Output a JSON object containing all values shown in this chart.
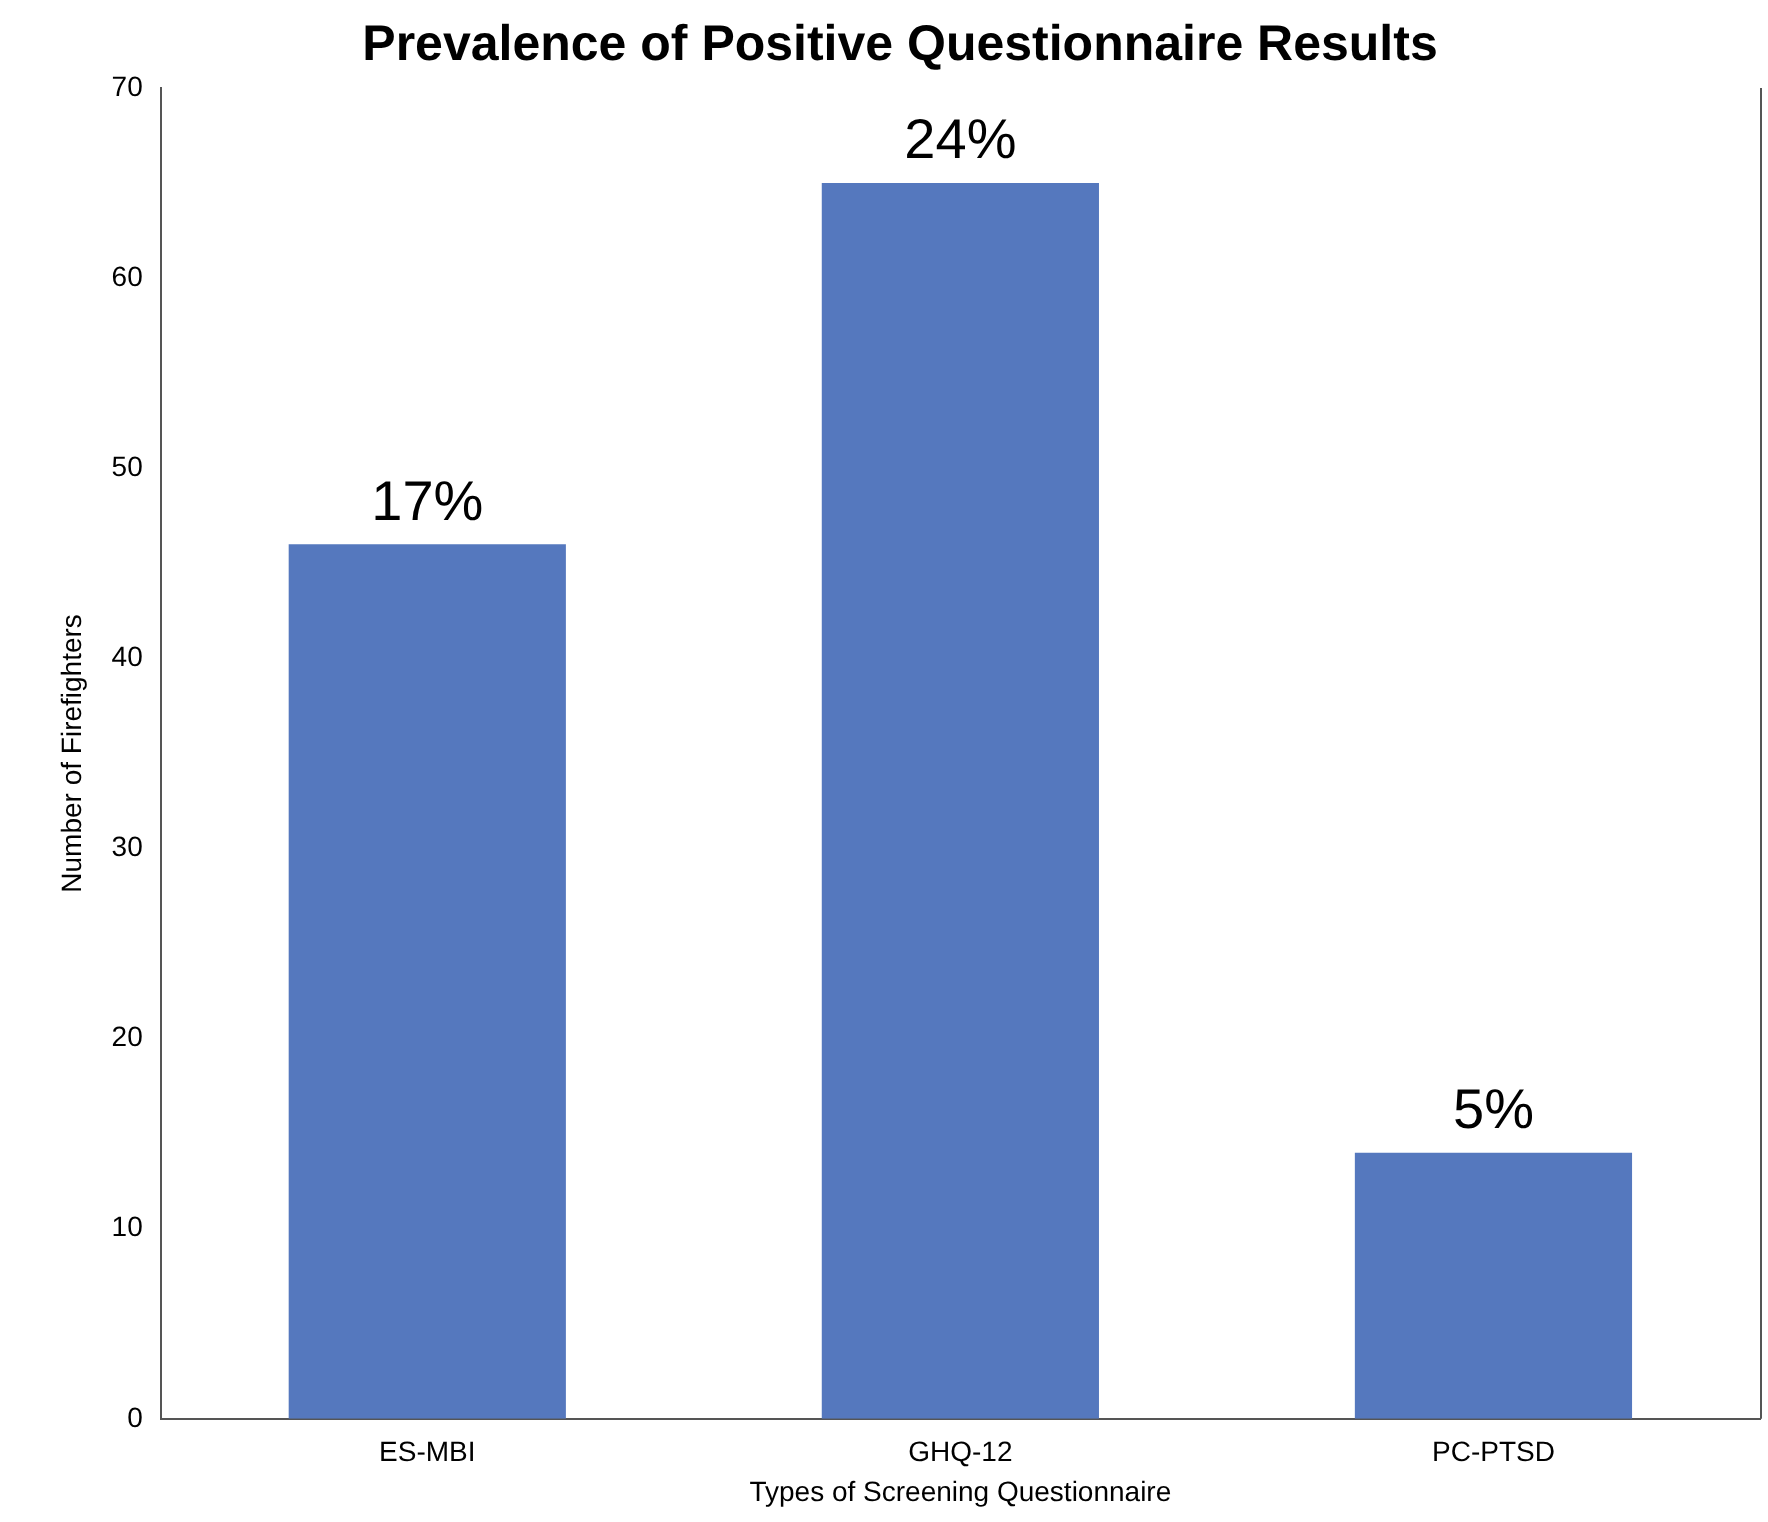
{
  "chart_data": {
    "type": "bar",
    "title": "Prevalence of Positive Questionnaire Results",
    "xlabel": "Types of Screening Questionnaire",
    "ylabel": "Number of Firefighters",
    "categories": [
      "ES-MBI",
      "GHQ-12",
      "PC-PTSD"
    ],
    "values": [
      46,
      65,
      14
    ],
    "color": "#5578be",
    "annotations": [
      {
        "text": "17%",
        "x": "ES-MBI",
        "y": 46
      },
      {
        "text": "24%",
        "x": "GHQ-12",
        "y": 65
      },
      {
        "text": "5%",
        "x": "PC-PTSD",
        "y": 14
      }
    ],
    "ylim": [
      0,
      70
    ],
    "yticks": [
      0,
      10,
      20,
      30,
      40,
      50,
      60,
      70
    ],
    "grid": false,
    "legend": false
  }
}
